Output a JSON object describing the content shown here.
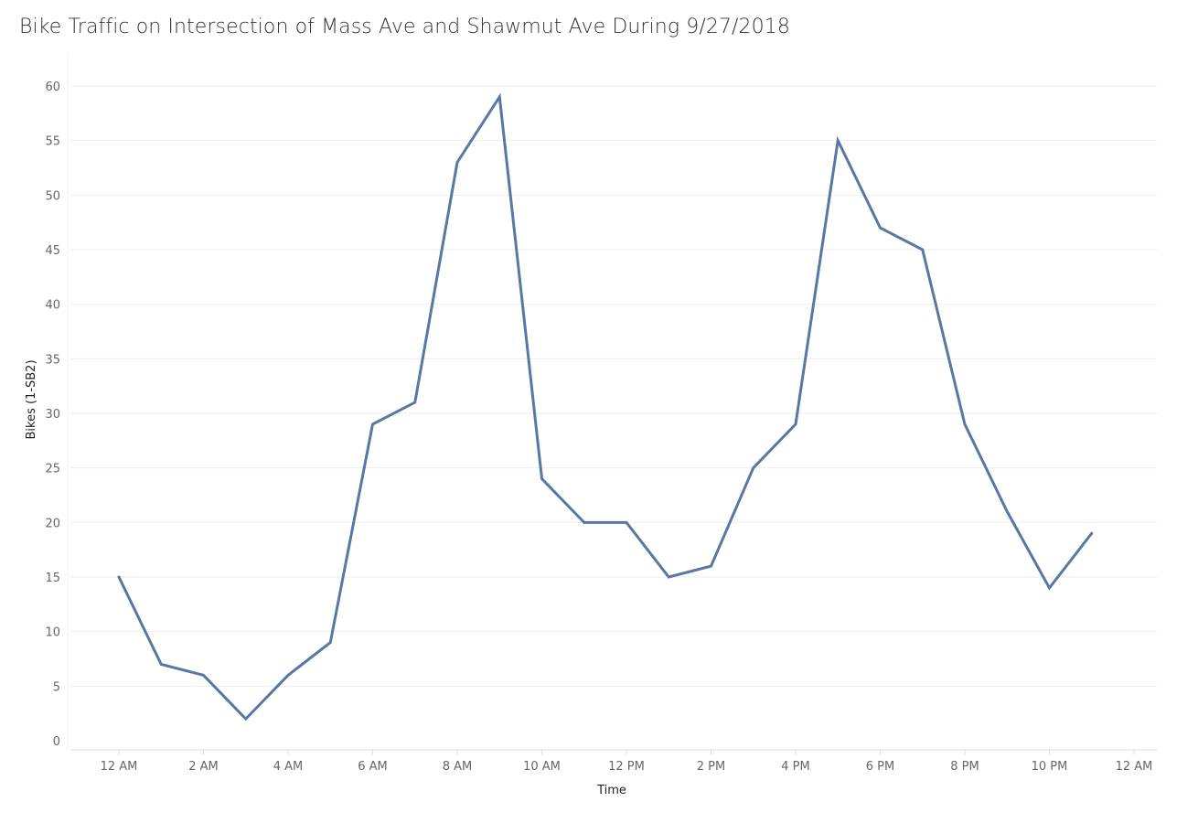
{
  "title": "Bike Traffic on Intersection of Mass Ave and Shawmut Ave During 9/27/2018",
  "colors": {
    "line": "#5878a3",
    "grid": "#eeeeee",
    "axis": "#dddddd"
  },
  "chart_data": {
    "type": "line",
    "title": "Bike Traffic on Intersection of Mass Ave and Shawmut Ave During 9/27/2018",
    "xlabel": "Time",
    "ylabel": "Bikes (1-SB2)",
    "x_hours": [
      0,
      1,
      2,
      3,
      4,
      5,
      6,
      7,
      8,
      9,
      10,
      11,
      12,
      13,
      14,
      15,
      16,
      17,
      18,
      19,
      20,
      21,
      22,
      23
    ],
    "values": [
      15,
      7,
      6,
      2,
      6,
      9,
      29,
      31,
      53,
      59,
      24,
      20,
      20,
      15,
      16,
      25,
      29,
      55,
      47,
      45,
      29,
      21,
      14,
      19
    ],
    "ylim": [
      0,
      60
    ],
    "xlim_hours": [
      0,
      24
    ],
    "yticks": [
      0,
      5,
      10,
      15,
      20,
      25,
      30,
      35,
      40,
      45,
      50,
      55,
      60
    ],
    "xticks": [
      {
        "hour": 0,
        "label": "12 AM"
      },
      {
        "hour": 2,
        "label": "2 AM"
      },
      {
        "hour": 4,
        "label": "4 AM"
      },
      {
        "hour": 6,
        "label": "6 AM"
      },
      {
        "hour": 8,
        "label": "8 AM"
      },
      {
        "hour": 10,
        "label": "10 AM"
      },
      {
        "hour": 12,
        "label": "12 PM"
      },
      {
        "hour": 14,
        "label": "2 PM"
      },
      {
        "hour": 16,
        "label": "4 PM"
      },
      {
        "hour": 18,
        "label": "6 PM"
      },
      {
        "hour": 20,
        "label": "8 PM"
      },
      {
        "hour": 22,
        "label": "10 PM"
      },
      {
        "hour": 24,
        "label": "12 AM"
      }
    ],
    "grid": true,
    "legend": "none"
  }
}
